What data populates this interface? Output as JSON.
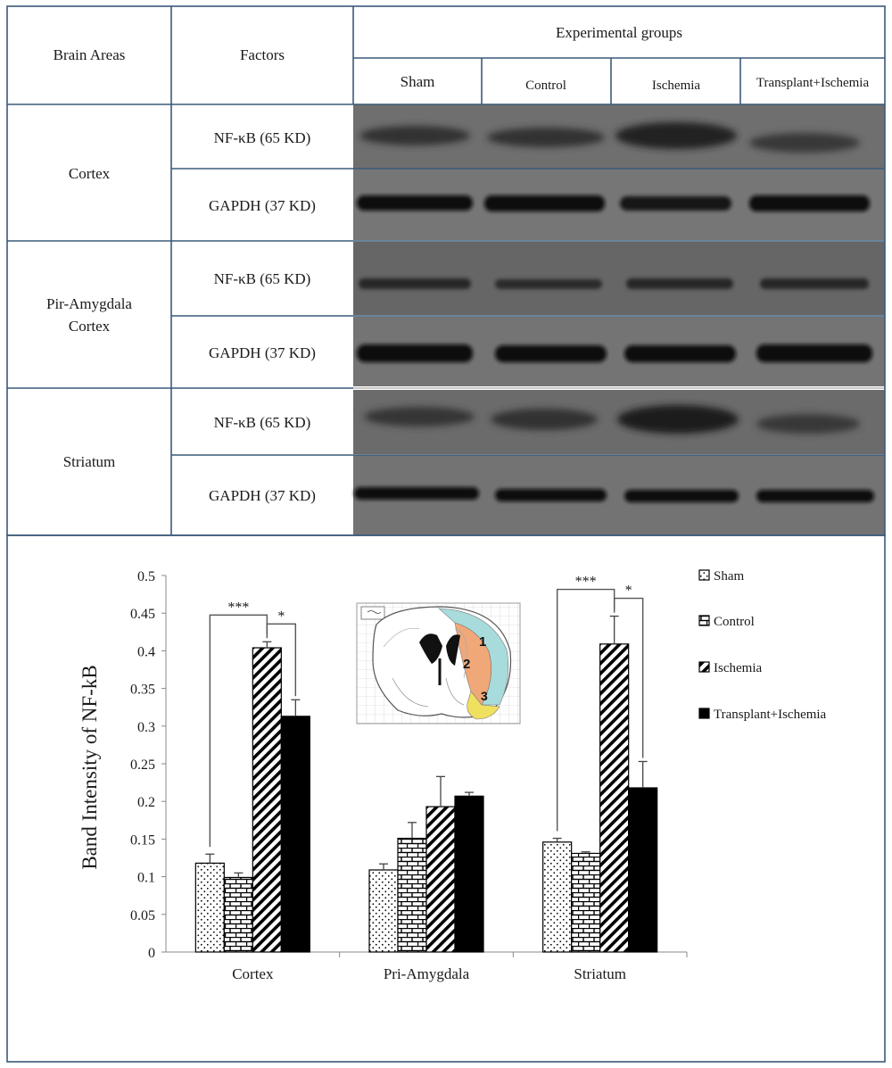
{
  "table": {
    "headers": {
      "brain_areas": "Brain Areas",
      "factors": "Factors",
      "experimental_groups": "Experimental groups"
    },
    "groups": [
      "Sham",
      "Control",
      "Ischemia",
      "Transplant+Ischemia"
    ],
    "rows": [
      {
        "area": "Cortex",
        "factors": [
          "NF-κB (65 KD)",
          "GAPDH (37 KD)"
        ]
      },
      {
        "area": [
          "Pir-Amygdala",
          "Cortex"
        ],
        "factors": [
          "NF-κB (65 KD)",
          "GAPDH (37 KD)"
        ]
      },
      {
        "area": "Striatum",
        "factors": [
          "NF-κB (65 KD)",
          "GAPDH (37 KD)"
        ]
      }
    ]
  },
  "chart_data": {
    "type": "bar",
    "title": "",
    "xlabel": "",
    "ylabel": "Band Intensity of  NF-kB",
    "ylim": [
      0,
      0.5
    ],
    "yticks": [
      "0",
      "0.05",
      "0.1",
      "0.15",
      "0.2",
      "0.25",
      "0.3",
      "0.35",
      "0.4",
      "0.45",
      "0.5"
    ],
    "grid": false,
    "legend_position": "right",
    "categories": [
      "Cortex",
      "Pri-Amygdala",
      "Striatum"
    ],
    "series": [
      {
        "name": "Sham",
        "pattern": "dots",
        "values": [
          0.118,
          0.109,
          0.146
        ],
        "errors": [
          0.012,
          0.008,
          0.005
        ]
      },
      {
        "name": "Control",
        "pattern": "bricks",
        "values": [
          0.099,
          0.151,
          0.131
        ],
        "errors": [
          0.006,
          0.021,
          0.002
        ]
      },
      {
        "name": "Ischemia",
        "pattern": "diagonal",
        "values": [
          0.404,
          0.193,
          0.409
        ],
        "errors": [
          0.008,
          0.04,
          0.037
        ]
      },
      {
        "name": "Transplant+Ischemia",
        "pattern": "solid",
        "values": [
          0.313,
          0.207,
          0.218
        ],
        "errors": [
          0.022,
          0.005,
          0.035
        ]
      }
    ],
    "significance": [
      {
        "category": "Cortex",
        "from": "Sham",
        "to": "Ischemia",
        "label": "***"
      },
      {
        "category": "Cortex",
        "from": "Ischemia",
        "to": "Transplant+Ischemia",
        "label": "*"
      },
      {
        "category": "Striatum",
        "from": "Sham",
        "to": "Ischemia",
        "label": "***"
      },
      {
        "category": "Striatum",
        "from": "Ischemia",
        "to": "Transplant+Ischemia",
        "label": "*"
      }
    ],
    "inset_labels": [
      "1",
      "2",
      "3"
    ]
  },
  "colors": {
    "border": "#3a5a7a",
    "blot_background": "#6d6d6d",
    "band": "#1a1a1a",
    "bar_fill": "#000000",
    "region_1": "#a8dcdc",
    "region_2": "#f0a878",
    "region_3": "#f0e060"
  }
}
